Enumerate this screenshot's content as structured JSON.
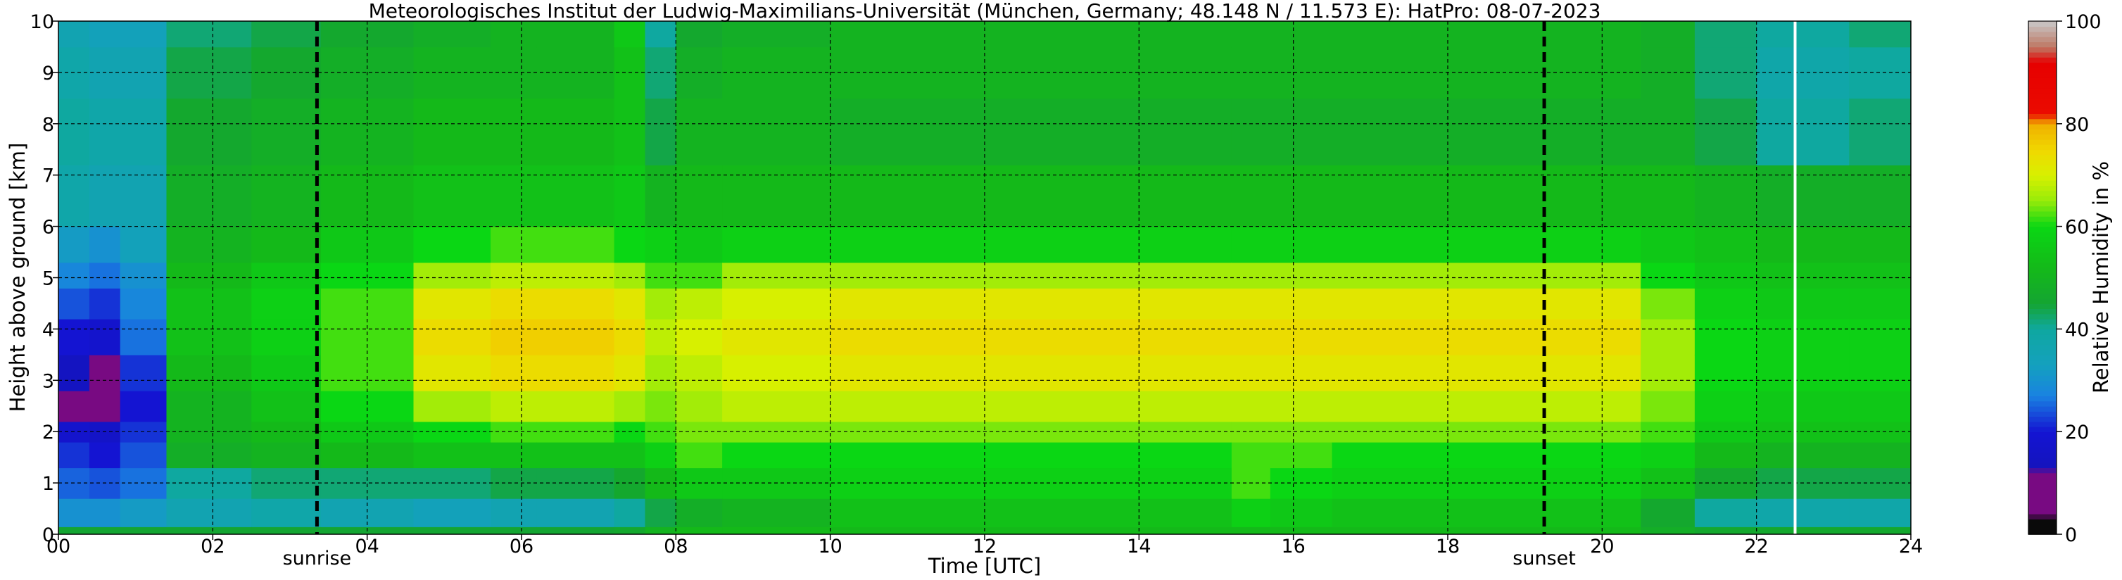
{
  "chart_data": {
    "type": "heatmap",
    "title": "Meteorologisches Institut der Ludwig-Maximilians-Universität (München, Germany; 48.148 N / 11.573 E):    HatPro: 08-07-2023",
    "xlabel": "Time [UTC]",
    "ylabel": "Height above ground [km]",
    "xlim": [
      0,
      24
    ],
    "ylim": [
      0,
      10
    ],
    "x_ticks": [
      "00",
      "02",
      "04",
      "06",
      "08",
      "10",
      "12",
      "14",
      "16",
      "18",
      "20",
      "22",
      "24"
    ],
    "x_tick_values": [
      0,
      2,
      4,
      6,
      8,
      10,
      12,
      14,
      16,
      18,
      20,
      22,
      24
    ],
    "y_ticks": [
      "0",
      "1",
      "2",
      "3",
      "4",
      "5",
      "6",
      "7",
      "8",
      "9",
      "10"
    ],
    "y_tick_values": [
      0,
      1,
      2,
      3,
      4,
      5,
      6,
      7,
      8,
      9,
      10
    ],
    "grid": true,
    "colorbar": {
      "label": "Relative Humidity in %",
      "range": [
        0,
        100
      ],
      "ticks": [
        "0",
        "20",
        "40",
        "60",
        "80",
        "100"
      ],
      "tick_values": [
        0,
        20,
        40,
        60,
        80,
        100
      ],
      "colors": [
        "#0a0a0a",
        "#7a0a8a",
        "#1010c0",
        "#1a80e0",
        "#10a8a8",
        "#10a030",
        "#10d010",
        "#d8f000",
        "#f0b400",
        "#e80000",
        "#c08070",
        "#c8c8c8"
      ]
    },
    "annotations": [
      {
        "label": "sunrise",
        "x": 3.35
      },
      {
        "label": "sunset",
        "x": 19.25
      }
    ],
    "gap_marker_x": 22.5,
    "time_bins": [
      0,
      0.4,
      0.8,
      1.4,
      2.5,
      3.4,
      4.6,
      5.6,
      6.2,
      7.2,
      7.6,
      8.0,
      8.6,
      10,
      12,
      14,
      15.2,
      15.7,
      16.5,
      18,
      19.5,
      20.5,
      21.2,
      22,
      22.5,
      23.2,
      24
    ],
    "height_bins": [
      0,
      0.15,
      0.7,
      1.3,
      1.8,
      2.2,
      2.8,
      3.5,
      4.2,
      4.8,
      5.3,
      6,
      7.2,
      8.5,
      9.5,
      10
    ],
    "humidity": [
      [
        45,
        30,
        25,
        22,
        18,
        12,
        14,
        20,
        24,
        28,
        32,
        38,
        40,
        38,
        36
      ],
      [
        45,
        30,
        24,
        20,
        16,
        10,
        12,
        18,
        22,
        26,
        30,
        36,
        38,
        36,
        34
      ],
      [
        45,
        32,
        26,
        24,
        22,
        20,
        22,
        26,
        28,
        30,
        34,
        36,
        38,
        36,
        34
      ],
      [
        45,
        36,
        40,
        48,
        50,
        50,
        52,
        54,
        54,
        52,
        50,
        48,
        46,
        44,
        42
      ],
      [
        45,
        38,
        42,
        50,
        52,
        54,
        56,
        58,
        58,
        56,
        52,
        50,
        48,
        46,
        44
      ],
      [
        45,
        36,
        42,
        52,
        56,
        60,
        62,
        62,
        62,
        60,
        56,
        52,
        50,
        48,
        46
      ],
      [
        45,
        34,
        42,
        54,
        60,
        66,
        72,
        74,
        72,
        66,
        60,
        54,
        52,
        50,
        48
      ],
      [
        45,
        36,
        44,
        54,
        62,
        68,
        74,
        76,
        74,
        68,
        62,
        54,
        52,
        50,
        50
      ],
      [
        45,
        36,
        44,
        54,
        62,
        68,
        74,
        76,
        74,
        68,
        62,
        54,
        52,
        50,
        50
      ],
      [
        46,
        40,
        46,
        54,
        60,
        66,
        72,
        74,
        72,
        66,
        60,
        56,
        54,
        54,
        56
      ],
      [
        50,
        44,
        52,
        58,
        62,
        64,
        66,
        68,
        66,
        62,
        58,
        50,
        44,
        42,
        40
      ],
      [
        52,
        48,
        56,
        62,
        64,
        66,
        68,
        70,
        68,
        62,
        56,
        52,
        50,
        48,
        46
      ],
      [
        52,
        50,
        56,
        60,
        64,
        68,
        70,
        72,
        70,
        66,
        58,
        52,
        50,
        50,
        48
      ],
      [
        52,
        54,
        58,
        60,
        64,
        68,
        72,
        74,
        72,
        66,
        58,
        52,
        48,
        50,
        50
      ],
      [
        52,
        54,
        58,
        60,
        64,
        68,
        72,
        74,
        72,
        66,
        58,
        52,
        48,
        50,
        50
      ],
      [
        52,
        54,
        58,
        60,
        64,
        68,
        72,
        74,
        72,
        66,
        58,
        52,
        48,
        50,
        50
      ],
      [
        52,
        58,
        62,
        62,
        64,
        68,
        72,
        74,
        72,
        66,
        58,
        52,
        48,
        50,
        50
      ],
      [
        52,
        56,
        60,
        62,
        64,
        68,
        72,
        74,
        72,
        66,
        58,
        52,
        48,
        50,
        50
      ],
      [
        52,
        54,
        58,
        60,
        64,
        68,
        72,
        74,
        72,
        66,
        58,
        52,
        48,
        50,
        50
      ],
      [
        52,
        54,
        58,
        60,
        64,
        68,
        72,
        74,
        72,
        66,
        58,
        52,
        48,
        50,
        50
      ],
      [
        52,
        54,
        58,
        60,
        64,
        68,
        72,
        74,
        72,
        66,
        58,
        52,
        48,
        50,
        50
      ],
      [
        48,
        46,
        54,
        58,
        62,
        64,
        66,
        66,
        64,
        60,
        56,
        52,
        48,
        48,
        48
      ],
      [
        46,
        40,
        46,
        52,
        56,
        58,
        60,
        60,
        58,
        56,
        54,
        50,
        44,
        42,
        42
      ],
      [
        46,
        38,
        44,
        50,
        54,
        56,
        58,
        58,
        56,
        54,
        52,
        48,
        40,
        38,
        40
      ],
      [
        46,
        38,
        44,
        50,
        54,
        56,
        58,
        58,
        56,
        54,
        52,
        48,
        40,
        38,
        40
      ],
      [
        46,
        38,
        44,
        50,
        54,
        56,
        58,
        58,
        56,
        54,
        52,
        48,
        42,
        40,
        42
      ]
    ]
  }
}
